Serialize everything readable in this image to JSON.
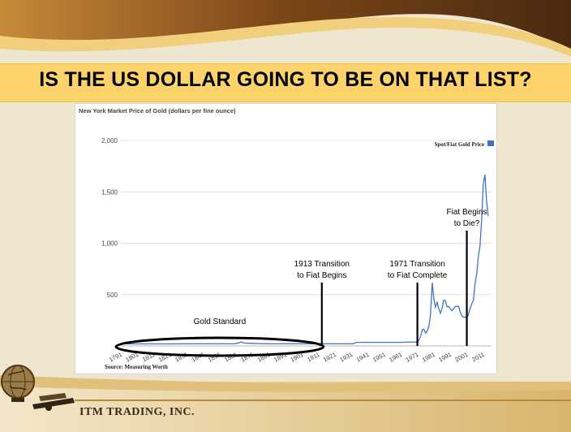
{
  "slide": {
    "title": "IS THE US DOLLAR GOING TO BE ON THAT LIST?",
    "company": "ITM TRADING, INC."
  },
  "colors": {
    "accent_band": "#fbd36a",
    "header_brown": "#6b3a12",
    "series_line": "#3f73c9"
  },
  "icons": {
    "logo": "globe-ship-logo-icon"
  },
  "chart_data": {
    "type": "line",
    "title": "New York Market Price of Gold (dollars per fine ounce)",
    "source": "Source: Measuring Worth",
    "legend": "Spot/Fiat Gold Price",
    "legend_position": "top-right",
    "grid": true,
    "ylim": [
      0,
      2000
    ],
    "xlim": [
      1791,
      2016
    ],
    "y_ticks": [
      {
        "value": 500,
        "label": "500"
      },
      {
        "value": 1000,
        "label": "1,000"
      },
      {
        "value": 1500,
        "label": "1,500"
      },
      {
        "value": 2000,
        "label": "2,000"
      }
    ],
    "x_ticks": [
      "1791",
      "1801",
      "1811",
      "1821",
      "1831",
      "1841",
      "1851",
      "1861",
      "1871",
      "1881",
      "1891",
      "1901",
      "1911",
      "1921",
      "1931",
      "1941",
      "1951",
      "1961",
      "1971",
      "1981",
      "1991",
      "2001",
      "2011"
    ],
    "series": [
      {
        "name": "Spot/Fiat Gold Price",
        "x": [
          1791,
          1800,
          1810,
          1820,
          1834,
          1840,
          1850,
          1860,
          1862,
          1864,
          1866,
          1870,
          1875,
          1879,
          1890,
          1900,
          1910,
          1920,
          1932,
          1934,
          1940,
          1950,
          1960,
          1968,
          1970,
          1971,
          1972,
          1973,
          1974,
          1975,
          1976,
          1977,
          1978,
          1979,
          1980,
          1981,
          1982,
          1983,
          1984,
          1985,
          1986,
          1987,
          1988,
          1989,
          1990,
          1991,
          1992,
          1993,
          1994,
          1995,
          1996,
          1997,
          1998,
          1999,
          2000,
          2001,
          2002,
          2003,
          2004,
          2005,
          2006,
          2007,
          2008,
          2009,
          2010,
          2011,
          2012,
          2013,
          2014
        ],
        "y": [
          19.39,
          19.39,
          19.39,
          19.39,
          20.67,
          20.67,
          20.67,
          20.67,
          27,
          39,
          28,
          25,
          23,
          20.67,
          20.67,
          20.67,
          20.67,
          20.67,
          20.67,
          35,
          35,
          35,
          35,
          39,
          36,
          41,
          58,
          97,
          160,
          161,
          125,
          148,
          193,
          306,
          615,
          460,
          376,
          424,
          361,
          317,
          368,
          447,
          437,
          381,
          384,
          362,
          344,
          360,
          384,
          384,
          388,
          331,
          294,
          279,
          279,
          271,
          310,
          364,
          410,
          445,
          604,
          697,
          872,
          972,
          1225,
          1572,
          1669,
          1411,
          1266
        ]
      }
    ],
    "annotations": [
      {
        "label_lines": [
          "Gold Standard"
        ],
        "x_from": 1791,
        "x_to": 1913
      },
      {
        "label_lines": [
          "1913 Transition",
          "to Fiat Begins"
        ],
        "x": 1913
      },
      {
        "label_lines": [
          "1971 Transition",
          "to Fiat Complete"
        ],
        "x": 1971
      },
      {
        "label_lines": [
          "Fiat Begins",
          "to Die?"
        ],
        "x": 2001
      }
    ]
  }
}
